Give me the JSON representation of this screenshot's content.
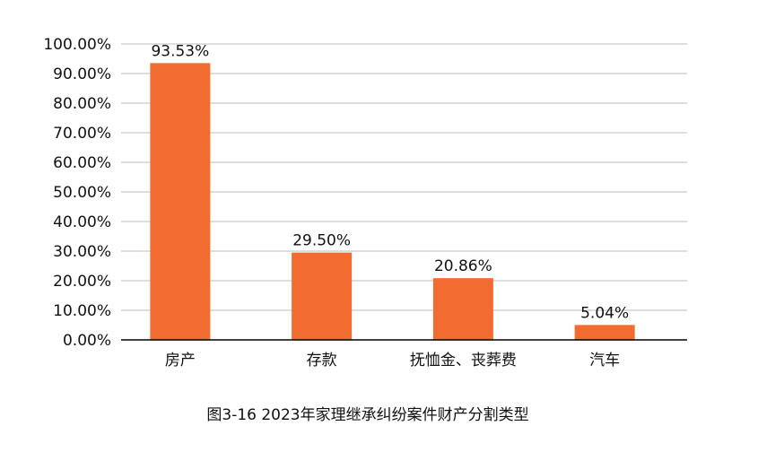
{
  "chart_data": {
    "type": "bar",
    "categories": [
      "房产",
      "存款",
      "抚恤金、丧葬费",
      "汽车"
    ],
    "values": [
      93.53,
      29.5,
      20.86,
      5.04
    ],
    "data_labels": [
      "93.53%",
      "29.50%",
      "20.86%",
      "5.04%"
    ],
    "title": "图3-16  2023年家理继承纠纷案件财产分割类型",
    "xlabel": "",
    "ylabel": "",
    "ylim": [
      0,
      100
    ],
    "yticks": [
      0,
      10,
      20,
      30,
      40,
      50,
      60,
      70,
      80,
      90,
      100
    ],
    "ytick_labels": [
      "0.00%",
      "10.00%",
      "20.00%",
      "30.00%",
      "40.00%",
      "50.00%",
      "60.00%",
      "70.00%",
      "80.00%",
      "90.00%",
      "100.00%"
    ],
    "grid": true,
    "legend": "none",
    "colors": {
      "bar": "#f26b30",
      "grid": "#bdbdbd",
      "axis": "#000000",
      "text": "#111111"
    }
  }
}
